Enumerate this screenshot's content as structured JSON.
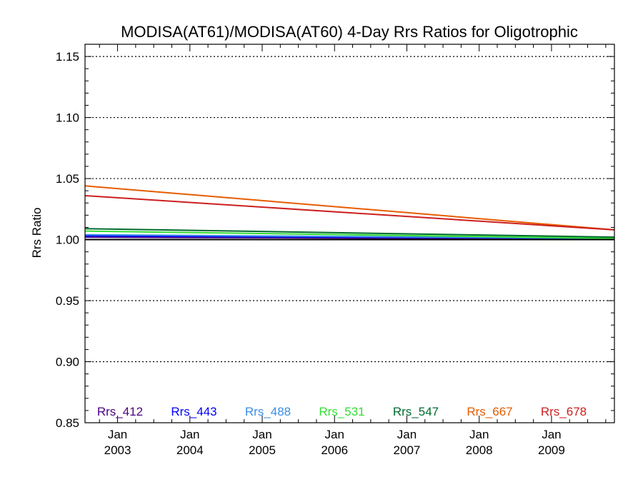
{
  "chart_data": {
    "type": "line",
    "title": "MODISA(AT61)/MODISA(AT60) 4-Day Rrs Ratios for Oligotrophic",
    "xlabel": "",
    "ylabel": "Rrs Ratio",
    "xlim": [
      2002.55,
      2009.87
    ],
    "ylim": [
      0.85,
      1.16
    ],
    "yticks": [
      "0.85",
      "0.90",
      "0.95",
      "1.00",
      "1.05",
      "1.10",
      "1.15"
    ],
    "ytick_values": [
      0.85,
      0.9,
      0.95,
      1.0,
      1.05,
      1.1,
      1.15
    ],
    "xticks": [
      {
        "value": 2003.0,
        "line1": "Jan",
        "line2": "2003"
      },
      {
        "value": 2004.0,
        "line1": "Jan",
        "line2": "2004"
      },
      {
        "value": 2005.0,
        "line1": "Jan",
        "line2": "2005"
      },
      {
        "value": 2006.0,
        "line1": "Jan",
        "line2": "2006"
      },
      {
        "value": 2007.0,
        "line1": "Jan",
        "line2": "2007"
      },
      {
        "value": 2008.0,
        "line1": "Jan",
        "line2": "2008"
      },
      {
        "value": 2009.0,
        "line1": "Jan",
        "line2": "2009"
      }
    ],
    "grid": "dotted horizontal at major y ticks",
    "reference_line": {
      "y": 1.0,
      "color": "#000000"
    },
    "series": [
      {
        "name": "Rrs_412",
        "color": "#4b0082",
        "x": [
          2002.55,
          2009.87
        ],
        "y": [
          1.002,
          1.0005
        ]
      },
      {
        "name": "Rrs_443",
        "color": "#0000ff",
        "x": [
          2002.55,
          2009.87
        ],
        "y": [
          1.003,
          1.001
        ]
      },
      {
        "name": "Rrs_488",
        "color": "#3a8ee6",
        "x": [
          2002.55,
          2009.87
        ],
        "y": [
          1.004,
          1.001
        ]
      },
      {
        "name": "Rrs_531",
        "color": "#33dd33",
        "x": [
          2002.55,
          2009.87
        ],
        "y": [
          1.007,
          1.001
        ]
      },
      {
        "name": "Rrs_547",
        "color": "#006b2e",
        "x": [
          2002.55,
          2009.87
        ],
        "y": [
          1.009,
          1.002
        ]
      },
      {
        "name": "Rrs_667",
        "color": "#e65c00",
        "x": [
          2002.55,
          2009.87
        ],
        "y": [
          1.044,
          1.008
        ]
      },
      {
        "name": "Rrs_678",
        "color": "#cc1f1f",
        "x": [
          2002.55,
          2009.87
        ],
        "y": [
          1.036,
          1.008
        ]
      }
    ]
  }
}
